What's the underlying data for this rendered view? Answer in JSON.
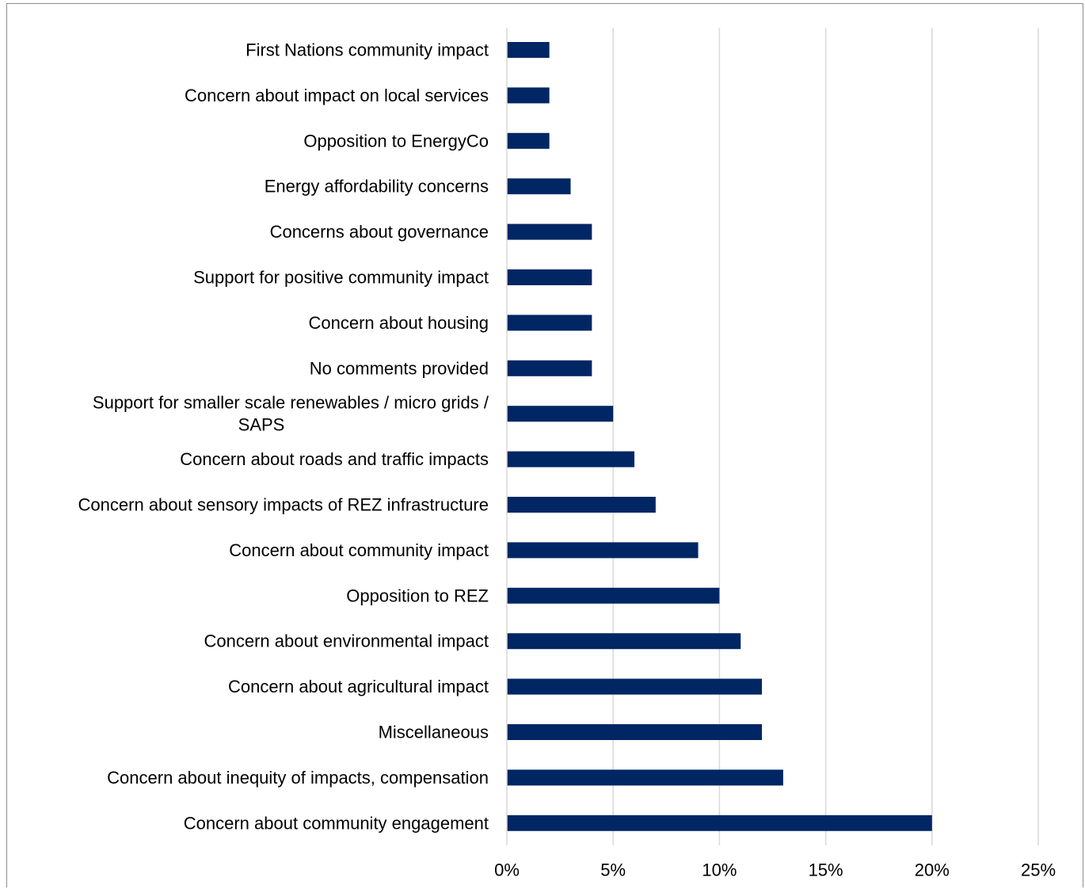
{
  "chart_data": {
    "type": "bar",
    "orientation": "horizontal",
    "categories": [
      "First Nations community impact",
      "Concern about impact on local services",
      "Opposition to EnergyCo",
      "Energy affordability concerns",
      "Concerns about governance",
      "Support for positive community impact",
      "Concern about housing",
      "No comments provided",
      "Support for smaller scale renewables / micro grids / SAPS",
      "Concern about roads and traffic impacts",
      "Concern about sensory impacts of REZ infrastructure",
      "Concern about community impact",
      "Opposition to REZ",
      "Concern about environmental impact",
      "Concern about agricultural impact",
      "Miscellaneous",
      "Concern about inequity of impacts, compensation",
      "Concern about community engagement"
    ],
    "category_lines": [
      [
        "First Nations community impact"
      ],
      [
        "Concern about impact on local services"
      ],
      [
        "Opposition to EnergyCo"
      ],
      [
        "Energy affordability concerns"
      ],
      [
        "Concerns about governance"
      ],
      [
        "Support for positive community impact"
      ],
      [
        "Concern about housing"
      ],
      [
        "No comments provided"
      ],
      [
        "Support for smaller scale renewables / micro grids /",
        "SAPS"
      ],
      [
        "Concern about roads and traffic impacts"
      ],
      [
        "Concern about sensory impacts of REZ infrastructure"
      ],
      [
        "Concern about community impact"
      ],
      [
        "Opposition to REZ"
      ],
      [
        "Concern about environmental impact"
      ],
      [
        "Concern about agricultural impact"
      ],
      [
        "Miscellaneous"
      ],
      [
        "Concern about inequity of impacts, compensation"
      ],
      [
        "Concern about community engagement"
      ]
    ],
    "values": [
      2,
      2,
      2,
      3,
      4,
      4,
      4,
      4,
      5,
      6,
      7,
      9,
      10,
      11,
      12,
      12,
      13,
      20
    ],
    "xlim": [
      0,
      25
    ],
    "x_ticks": [
      0,
      5,
      10,
      15,
      20,
      25
    ],
    "x_tick_labels": [
      "0%",
      "5%",
      "10%",
      "15%",
      "20%",
      "25%"
    ],
    "title": "",
    "xlabel": "",
    "ylabel": "",
    "grid": true,
    "legend": "none",
    "bar_color": "#002664",
    "grid_color": "#d9d9d9"
  }
}
